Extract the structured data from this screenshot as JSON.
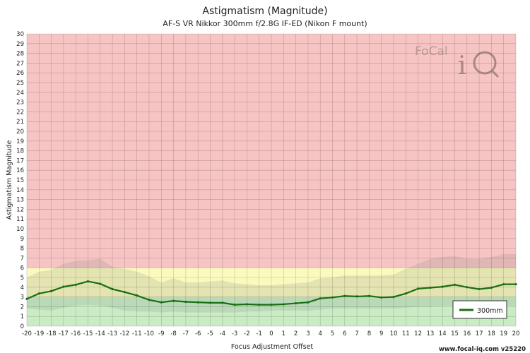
{
  "chart_data": {
    "type": "line",
    "title": "Astigmatism (Magnitude)",
    "subtitle": "AF-S VR Nikkor 300mm f/2.8G IF-ED (Nikon F mount)",
    "xlabel": "Focus Adjustment Offset",
    "ylabel": "Astigmatism Magnitude",
    "xlim": [
      -20,
      20
    ],
    "ylim": [
      0,
      30
    ],
    "x_ticks": [
      -20,
      -19,
      -18,
      -17,
      -16,
      -15,
      -14,
      -13,
      -12,
      -11,
      -10,
      -9,
      -8,
      -7,
      -6,
      -5,
      -4,
      -3,
      -2,
      -1,
      0,
      1,
      2,
      3,
      4,
      5,
      6,
      7,
      8,
      9,
      10,
      11,
      12,
      13,
      14,
      15,
      16,
      17,
      18,
      19,
      20
    ],
    "y_ticks": [
      0,
      1,
      2,
      3,
      4,
      5,
      6,
      7,
      8,
      9,
      10,
      11,
      12,
      13,
      14,
      15,
      16,
      17,
      18,
      19,
      20,
      21,
      22,
      23,
      24,
      25,
      26,
      27,
      28,
      29,
      30
    ],
    "grid": true,
    "zones": [
      {
        "name": "green",
        "from": 0,
        "to": 3,
        "color": "#c9ecc4"
      },
      {
        "name": "yellow",
        "from": 3,
        "to": 6,
        "color": "#fafabe"
      },
      {
        "name": "red",
        "from": 6,
        "to": 30,
        "color": "#f7c4c4"
      }
    ],
    "series": [
      {
        "name": "300mm",
        "color": "#1a6e12",
        "x": [
          -20,
          -19,
          -18,
          -17,
          -16,
          -15,
          -14,
          -13,
          -12,
          -11,
          -10,
          -9,
          -8,
          -7,
          -6,
          -5,
          -4,
          -3,
          -2,
          -1,
          0,
          1,
          2,
          3,
          4,
          5,
          6,
          7,
          8,
          9,
          10,
          11,
          12,
          13,
          14,
          15,
          16,
          17,
          18,
          19,
          20
        ],
        "y": [
          2.8,
          3.35,
          3.6,
          4.05,
          4.25,
          4.6,
          4.35,
          3.8,
          3.5,
          3.15,
          2.7,
          2.45,
          2.6,
          2.5,
          2.45,
          2.4,
          2.4,
          2.2,
          2.25,
          2.2,
          2.2,
          2.25,
          2.35,
          2.45,
          2.85,
          2.95,
          3.1,
          3.05,
          3.1,
          2.95,
          3.0,
          3.35,
          3.85,
          3.95,
          4.05,
          4.25,
          4.0,
          3.8,
          3.95,
          4.3,
          4.3
        ],
        "band_upper": [
          5.0,
          5.6,
          5.8,
          6.4,
          6.7,
          6.8,
          6.9,
          6.1,
          5.9,
          5.6,
          5.1,
          4.5,
          4.9,
          4.5,
          4.5,
          4.6,
          4.7,
          4.4,
          4.3,
          4.2,
          4.2,
          4.3,
          4.4,
          4.5,
          4.9,
          5.0,
          5.2,
          5.2,
          5.2,
          5.2,
          5.3,
          5.9,
          6.4,
          6.9,
          7.1,
          7.2,
          6.9,
          6.9,
          7.1,
          7.4,
          7.4
        ],
        "band_lower": [
          1.8,
          1.7,
          1.6,
          1.9,
          2.1,
          2.2,
          2.1,
          1.9,
          1.6,
          1.5,
          1.5,
          1.4,
          1.5,
          1.4,
          1.4,
          1.4,
          1.4,
          1.4,
          1.5,
          1.5,
          1.6,
          1.6,
          1.6,
          1.6,
          1.7,
          1.8,
          1.8,
          1.8,
          1.8,
          1.8,
          1.8,
          1.9,
          2.0,
          2.0,
          2.1,
          2.1,
          2.1,
          2.0,
          2.0,
          2.1,
          2.1
        ]
      }
    ],
    "legend": {
      "position": "bottom-right",
      "entries": [
        "300mm"
      ]
    }
  },
  "watermark": {
    "logo_text": "FoCal iQ"
  },
  "footer": "www.focal-iq.com v25220"
}
